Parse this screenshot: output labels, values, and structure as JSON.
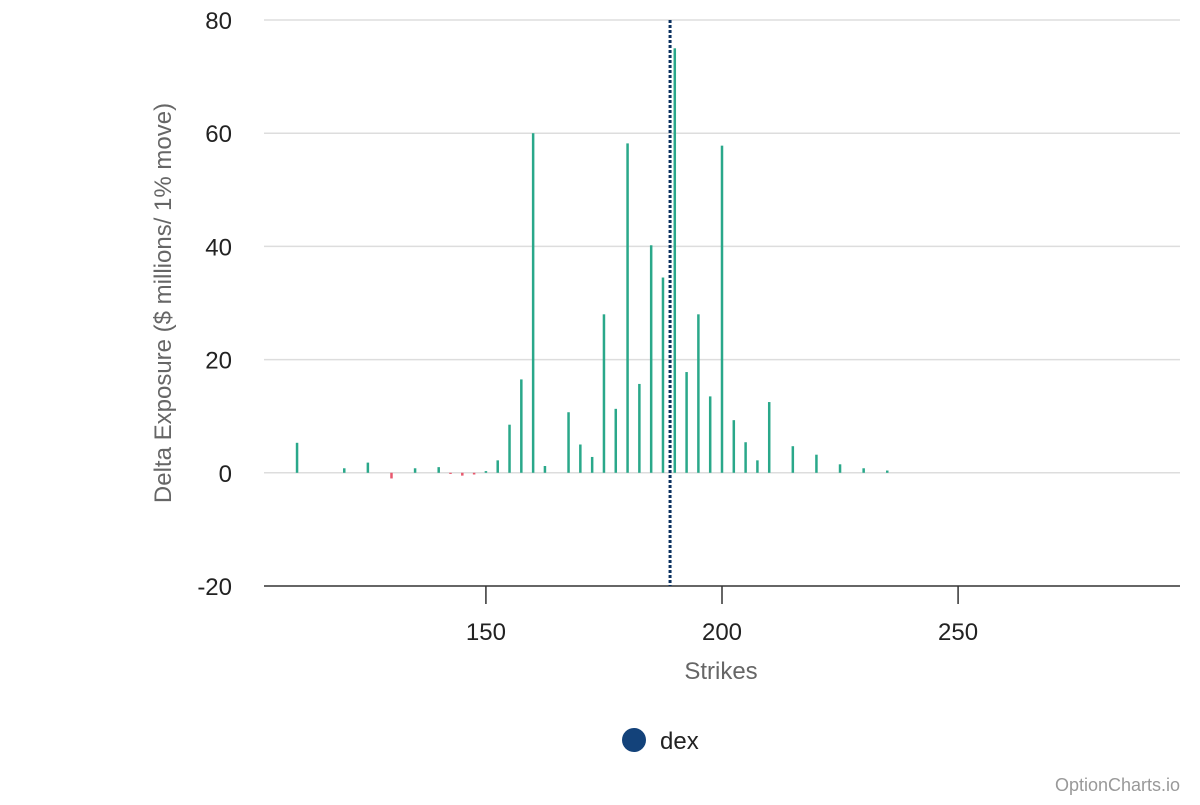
{
  "chart_data": {
    "type": "bar",
    "title": "",
    "xlabel": "Strikes",
    "ylabel": "Delta Exposure ($ millions/ 1% move)",
    "xlim": [
      103,
      297
    ],
    "ylim": [
      -20,
      80
    ],
    "x_ticks": [
      150,
      200,
      250
    ],
    "y_ticks": [
      -20,
      0,
      20,
      40,
      60,
      80
    ],
    "grid": "horizontal",
    "legend_position": "bottom",
    "reference_line": {
      "x": 189,
      "style": "dotted",
      "color": "#0b3160"
    },
    "positive_color": "#2aa88a",
    "negative_color": "#e8586e",
    "legend_marker_color": "#13427a",
    "series": [
      {
        "name": "dex",
        "points": [
          {
            "x": 110,
            "y": 5.3
          },
          {
            "x": 120,
            "y": 0.8
          },
          {
            "x": 125,
            "y": 1.8
          },
          {
            "x": 130,
            "y": -1.0
          },
          {
            "x": 135,
            "y": 0.8
          },
          {
            "x": 140,
            "y": 1.0
          },
          {
            "x": 142.5,
            "y": -0.2
          },
          {
            "x": 145,
            "y": -0.5
          },
          {
            "x": 147.5,
            "y": -0.3
          },
          {
            "x": 150,
            "y": 0.3
          },
          {
            "x": 152.5,
            "y": 2.2
          },
          {
            "x": 155,
            "y": 8.5
          },
          {
            "x": 157.5,
            "y": 16.5
          },
          {
            "x": 160,
            "y": 60.0
          },
          {
            "x": 162.5,
            "y": 1.2
          },
          {
            "x": 167.5,
            "y": 10.7
          },
          {
            "x": 170,
            "y": 5.0
          },
          {
            "x": 172.5,
            "y": 2.8
          },
          {
            "x": 175,
            "y": 28.0
          },
          {
            "x": 177.5,
            "y": 11.3
          },
          {
            "x": 180,
            "y": 58.2
          },
          {
            "x": 182.5,
            "y": 15.7
          },
          {
            "x": 185,
            "y": 40.2
          },
          {
            "x": 187.5,
            "y": 34.5
          },
          {
            "x": 190,
            "y": 75.0
          },
          {
            "x": 192.5,
            "y": 17.8
          },
          {
            "x": 195,
            "y": 28.0
          },
          {
            "x": 197.5,
            "y": 13.5
          },
          {
            "x": 200,
            "y": 57.8
          },
          {
            "x": 202.5,
            "y": 9.3
          },
          {
            "x": 205,
            "y": 5.4
          },
          {
            "x": 207.5,
            "y": 2.2
          },
          {
            "x": 210,
            "y": 12.5
          },
          {
            "x": 215,
            "y": 4.7
          },
          {
            "x": 220,
            "y": 3.2
          },
          {
            "x": 225,
            "y": 1.5
          },
          {
            "x": 230,
            "y": 0.8
          },
          {
            "x": 235,
            "y": 0.4
          }
        ]
      }
    ]
  },
  "legend": {
    "items": [
      {
        "label": "dex",
        "color": "#13427a"
      }
    ]
  },
  "credit": "OptionCharts.io"
}
